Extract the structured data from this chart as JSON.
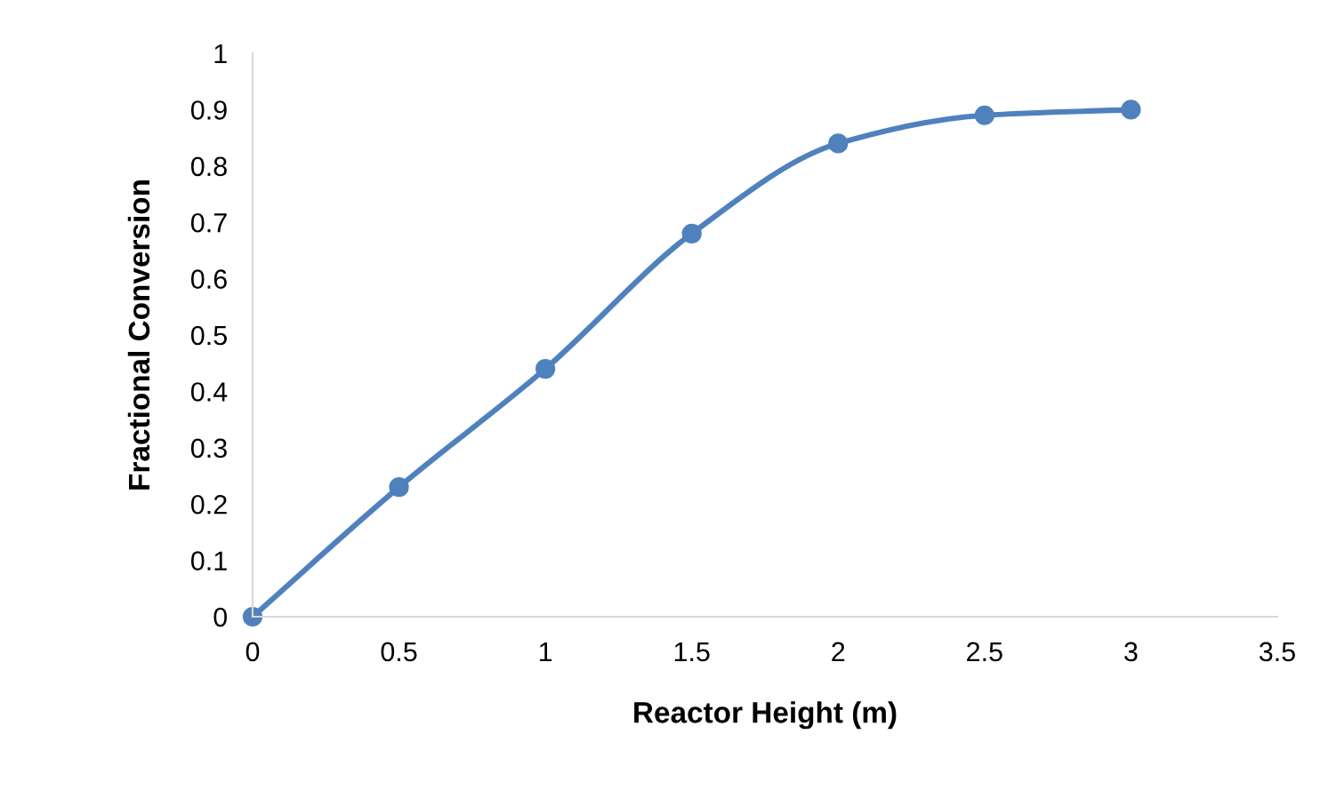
{
  "chart_data": {
    "type": "line",
    "xlabel": "Reactor Height (m)",
    "ylabel": "Fractional Conversion",
    "x": [
      0,
      0.5,
      1,
      1.5,
      2,
      2.5,
      3
    ],
    "series": [
      {
        "color": "#4f81bd",
        "values": [
          0,
          0.23,
          0.44,
          0.68,
          0.84,
          0.89,
          0.9
        ]
      }
    ],
    "xlim": [
      0,
      3.5
    ],
    "xticks": [
      0,
      0.5,
      1,
      1.5,
      2,
      2.5,
      3,
      3.5
    ],
    "ylim": [
      0,
      1
    ],
    "yticks": [
      0,
      0.1,
      0.2,
      0.3,
      0.4,
      0.5,
      0.6,
      0.7,
      0.8,
      0.9,
      1
    ],
    "grid": false,
    "legend": false,
    "marker": "circle",
    "line_style": "solid"
  }
}
